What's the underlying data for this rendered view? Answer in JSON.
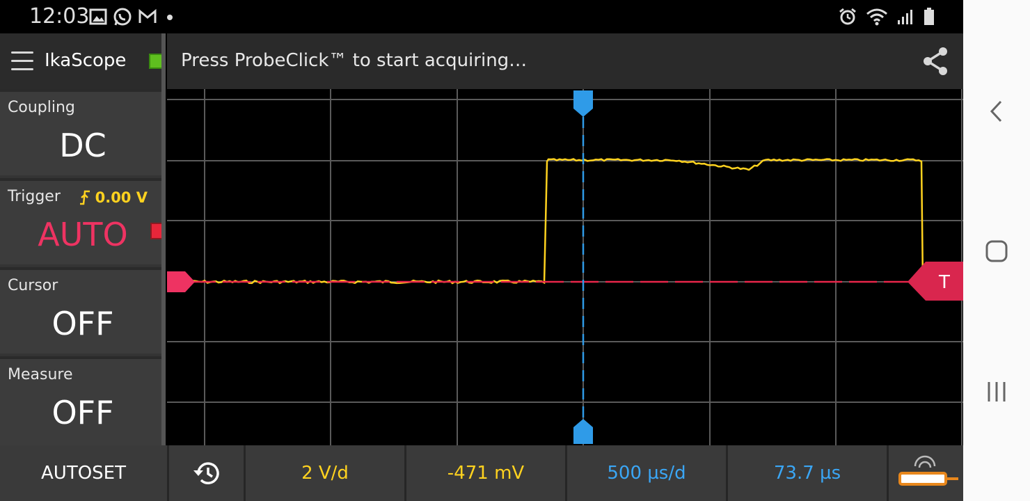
{
  "status_bar": {
    "time": "12:03",
    "left_icons": [
      "image-icon",
      "whatsapp-icon",
      "gmail-icon",
      "dot-icon"
    ],
    "right_icons": [
      "alarm-icon",
      "wifi-icon",
      "signal-icon",
      "battery-icon"
    ]
  },
  "app": {
    "title": "IkaScope",
    "status_message": "Press ProbeClick™ to start acquiring…"
  },
  "sidebar": {
    "coupling": {
      "label": "Coupling",
      "value": "DC"
    },
    "trigger": {
      "label": "Trigger",
      "level": "0.00 V",
      "value": "AUTO"
    },
    "cursor": {
      "label": "Cursor",
      "value": "OFF"
    },
    "measure": {
      "label": "Measure",
      "value": "OFF"
    }
  },
  "trigger_marker": {
    "label": "T"
  },
  "bottom_bar": {
    "autoset_label": "AUTOSET",
    "volts_per_div": "2 V/d",
    "offset": "-471 mV",
    "time_per_div": "500 µs/d",
    "time_offset": "73.7 µs"
  },
  "colors": {
    "trace": "#ffd21f",
    "trigger": "#e8264a",
    "time_cursor": "#2f9be8",
    "auto": "#ee3362",
    "led_connected": "#5fbf1f"
  }
}
